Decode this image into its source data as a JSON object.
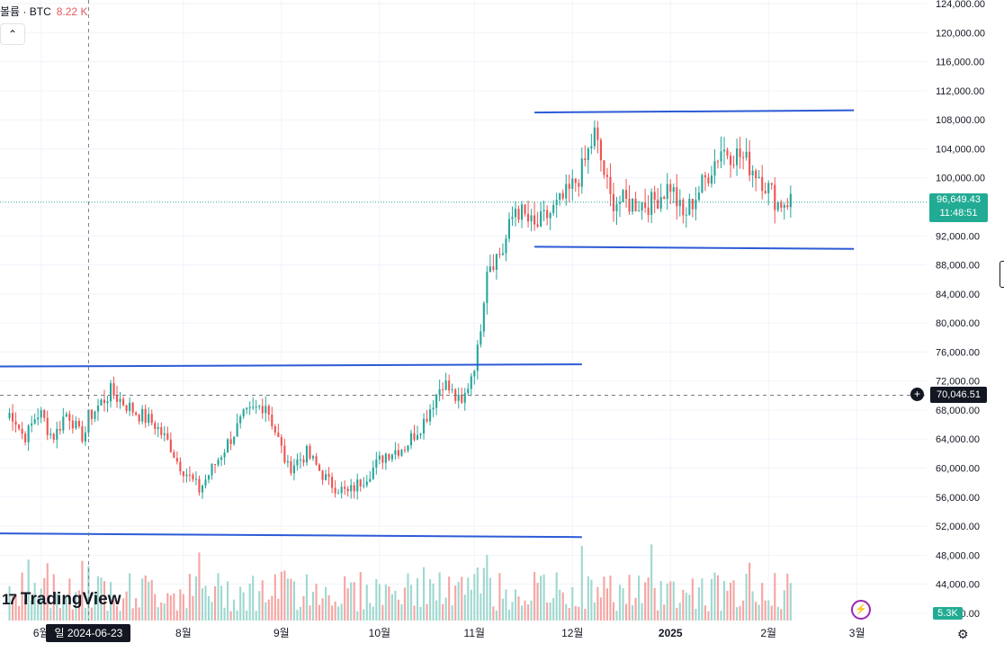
{
  "header": {
    "label": "볼륨 · BTC",
    "volume": "8.22 K"
  },
  "collapse_icon": "chevron-up-icon",
  "logo": {
    "mark": "17",
    "text": "TradingView"
  },
  "price_tag": {
    "price": "96,649.43",
    "countdown": "11:48:51"
  },
  "crosshair_tag": "70,046.51",
  "crosshair_date": "일 2024-06-23",
  "volume_tag": "5.3K",
  "colors": {
    "up": "#26a69a",
    "down": "#ef5350",
    "upVol": "#9fd8cf",
    "downVol": "#f5a5a3",
    "trend": "#2c5bd6",
    "grid": "#f0f3fa"
  },
  "chart_data": {
    "type": "candlestick",
    "y_ticks": [
      "124,000.00",
      "120,000.00",
      "116,000.00",
      "112,000.00",
      "108,000.00",
      "104,000.00",
      "100,000.00",
      "96,000.00",
      "92,000.00",
      "88,000.00",
      "84,000.00",
      "80,000.00",
      "76,000.00",
      "72,000.00",
      "68,000.00",
      "64,000.00",
      "60,000.00",
      "56,000.00",
      "52,000.00",
      "48,000.00",
      "44,000.00",
      "40,000.00"
    ],
    "y_tick_values": [
      124000,
      120000,
      116000,
      112000,
      108000,
      104000,
      100000,
      96000,
      92000,
      88000,
      84000,
      80000,
      76000,
      72000,
      68000,
      64000,
      60000,
      56000,
      52000,
      48000,
      44000,
      40000
    ],
    "ylim": [
      39000,
      124500
    ],
    "x_ticks": [
      "6월",
      "8월",
      "9월",
      "10월",
      "11월",
      "12월",
      "2025",
      "2월",
      "3월"
    ],
    "x_tick_days": [
      -15,
      30,
      61,
      92,
      122,
      153,
      184,
      215,
      243
    ],
    "x_range_days": [
      -28,
      265
    ],
    "keypoints": [
      [
        0,
        67000
      ],
      [
        7,
        70500
      ],
      [
        14,
        68000
      ],
      [
        21,
        66000
      ],
      [
        26,
        63000
      ],
      [
        28,
        61000
      ],
      [
        35,
        57000
      ],
      [
        42,
        62000
      ],
      [
        49,
        67000
      ],
      [
        56,
        69000
      ],
      [
        63,
        60000
      ],
      [
        69,
        62000
      ],
      [
        76,
        58000
      ],
      [
        82,
        56500
      ],
      [
        88,
        59000
      ],
      [
        94,
        62000
      ],
      [
        100,
        63000
      ],
      [
        106,
        66500
      ],
      [
        112,
        72000
      ],
      [
        118,
        68500
      ],
      [
        123,
        76000
      ],
      [
        126,
        88000
      ],
      [
        131,
        90000
      ],
      [
        135,
        96000
      ],
      [
        141,
        93000
      ],
      [
        148,
        96000
      ],
      [
        152,
        98000
      ],
      [
        156,
        101000
      ],
      [
        160,
        106000
      ],
      [
        165,
        97000
      ],
      [
        171,
        96500
      ],
      [
        178,
        96500
      ],
      [
        184,
        99000
      ],
      [
        188,
        94500
      ],
      [
        194,
        99000
      ],
      [
        200,
        104000
      ],
      [
        206,
        103000
      ],
      [
        212,
        100500
      ],
      [
        218,
        96500
      ],
      [
        222,
        97000
      ]
    ],
    "trendlines": [
      {
        "start": [
          -28,
          74000
        ],
        "end": [
          156,
          74300
        ]
      },
      {
        "start": [
          -28,
          51000
        ],
        "end": [
          156,
          50500
        ]
      },
      {
        "start": [
          141,
          109000
        ],
        "end": [
          242,
          109300
        ]
      },
      {
        "start": [
          141,
          90500
        ],
        "end": [
          242,
          90200
        ]
      }
    ],
    "current_price": 96649.43,
    "crosshair_price": 70046.51,
    "crosshair_day": 0
  }
}
